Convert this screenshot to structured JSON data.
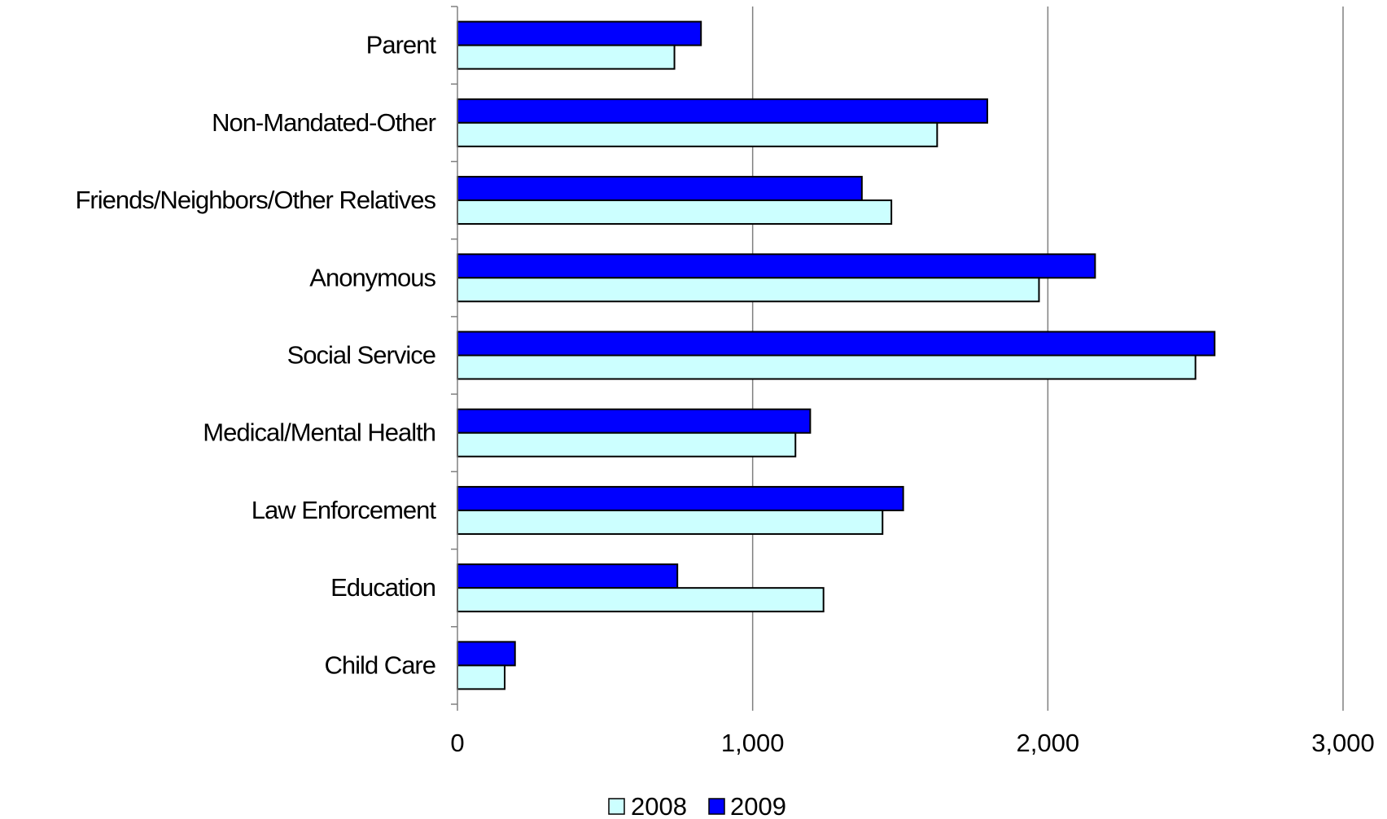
{
  "chart_data": {
    "type": "bar",
    "orientation": "horizontal",
    "categories": [
      "Parent",
      "Non-Mandated-Other",
      "Friends/Neighbors/Other Relatives",
      "Anonymous",
      "Social Service",
      "Medical/Mental Health",
      "Law  Enforcement",
      "Education",
      "Child Care"
    ],
    "series": [
      {
        "name": "2008",
        "color": "#ccffff",
        "values": [
          735,
          1625,
          1470,
          1970,
          2500,
          1145,
          1440,
          1240,
          160
        ]
      },
      {
        "name": "2009",
        "color": "#0000ff",
        "values": [
          825,
          1795,
          1370,
          2160,
          2565,
          1195,
          1510,
          745,
          195
        ]
      }
    ],
    "xlim": [
      0,
      3000
    ],
    "xticks": [
      "0",
      "1,000",
      "2,000",
      "3,000"
    ],
    "xtick_values": [
      0,
      1000,
      2000,
      3000
    ],
    "grid": "vertical",
    "legend": "bottom-center",
    "title": "",
    "xlabel": "",
    "ylabel": ""
  }
}
